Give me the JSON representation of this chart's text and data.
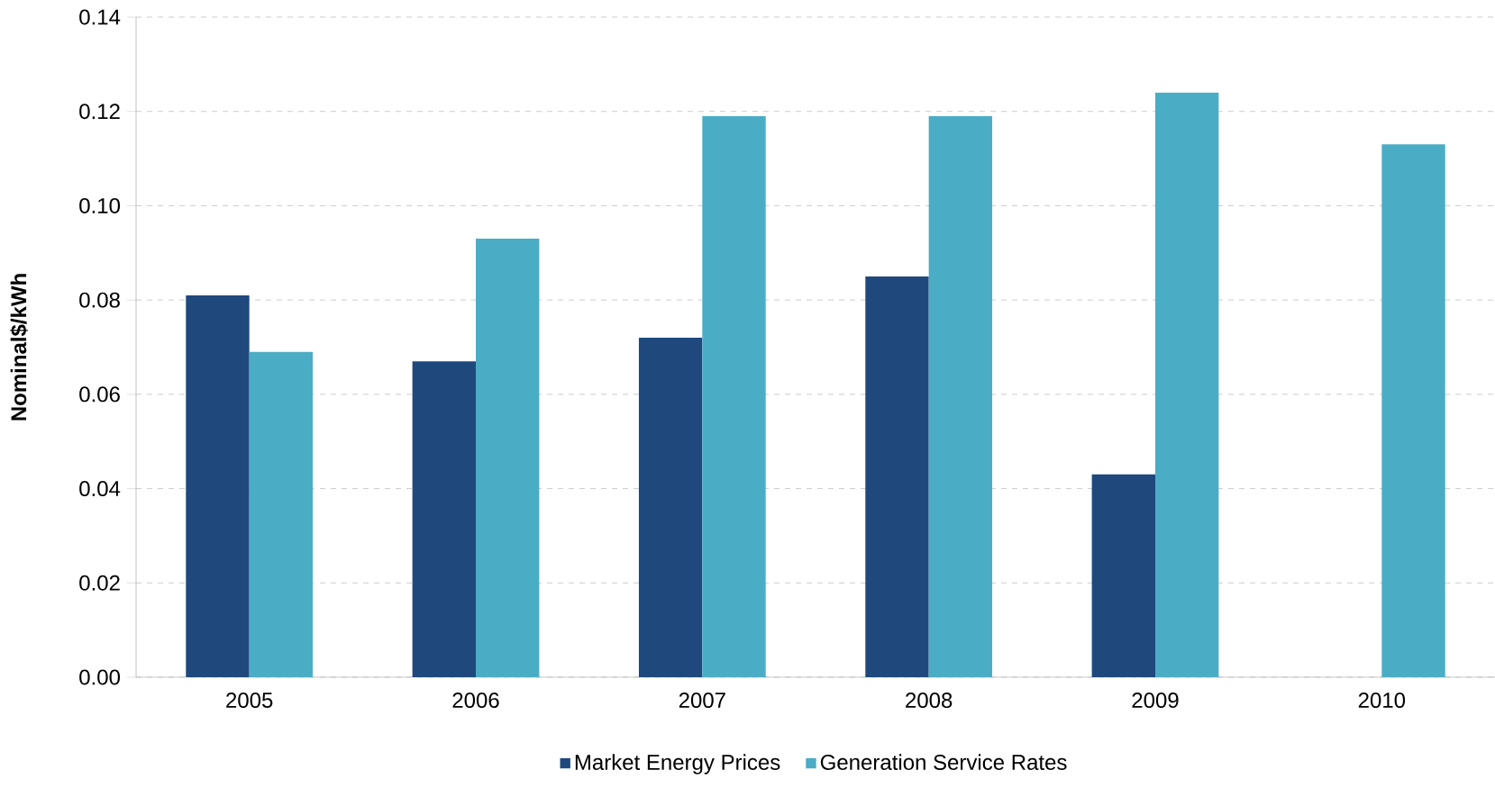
{
  "chart_data": {
    "type": "bar",
    "ylabel": "Nominal$/kWh",
    "categories": [
      "2005",
      "2006",
      "2007",
      "2008",
      "2009",
      "2010"
    ],
    "series": [
      {
        "name": "Market Energy Prices",
        "color": "#1f497d",
        "values": [
          0.081,
          0.067,
          0.072,
          0.085,
          0.043,
          null
        ]
      },
      {
        "name": "Generation Service Rates",
        "color": "#4bacc6",
        "values": [
          0.069,
          0.093,
          0.119,
          0.119,
          0.124,
          0.113
        ]
      }
    ],
    "ylim": [
      0,
      0.14
    ],
    "yticks": [
      {
        "value": 0,
        "label": "0.00"
      },
      {
        "value": 0.02,
        "label": "0.02"
      },
      {
        "value": 0.04,
        "label": "0.04"
      },
      {
        "value": 0.06,
        "label": "0.06"
      },
      {
        "value": 0.08,
        "label": "0.08"
      },
      {
        "value": 0.1,
        "label": "0.10"
      },
      {
        "value": 0.12,
        "label": "0.12"
      },
      {
        "value": 0.14,
        "label": "0.14"
      }
    ],
    "grid": "y",
    "legend": "bottom"
  }
}
